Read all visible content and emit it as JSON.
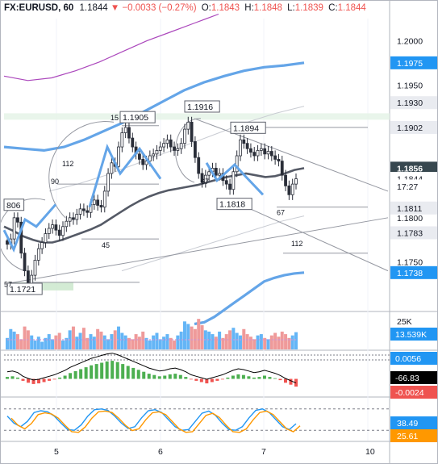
{
  "header": {
    "symbol": "FX:EURUSD, 60",
    "last": "1.1844",
    "change": "▼ −0.0033 (−0.27%)",
    "o_label": "O:",
    "o": "1.1843",
    "h_label": "H:",
    "h": "1.1848",
    "l_label": "L:",
    "l": "1.1839",
    "c_label": "C:",
    "c": "1.1844"
  },
  "price_axis_ticks": [
    "1.2000",
    "1.1950",
    "1.1800",
    "1.1750"
  ],
  "price_badges": [
    {
      "text": "1.1975",
      "style": "blue"
    },
    {
      "text": "1.1930",
      "style": "gray"
    },
    {
      "text": "1.1902",
      "style": "gray"
    },
    {
      "text": "1.1856",
      "style": "dark"
    },
    {
      "text": "1.1844",
      "style": "light"
    },
    {
      "text": "17:27",
      "style": "light"
    },
    {
      "text": "1.1811",
      "style": "gray"
    },
    {
      "text": "1.1783",
      "style": "gray"
    },
    {
      "text": "1.1738",
      "style": "blue"
    }
  ],
  "chart_labels": [
    {
      "text": "1.1905",
      "boxed": true
    },
    {
      "text": "1.1916",
      "boxed": true
    },
    {
      "text": "1.1894",
      "boxed": true
    },
    {
      "text": "1.1818",
      "boxed": true
    },
    {
      "text": "1.1721",
      "boxed": true
    },
    {
      "text": "806",
      "boxed": true
    },
    {
      "text": "15",
      "boxed": false
    },
    {
      "text": "112",
      "boxed": false
    },
    {
      "text": "90",
      "boxed": false
    },
    {
      "text": "45",
      "boxed": false
    },
    {
      "text": "67",
      "boxed": false
    },
    {
      "text": "67",
      "boxed": false
    },
    {
      "text": "112",
      "boxed": false
    },
    {
      "text": "57",
      "boxed": false
    }
  ],
  "volume_badges": [
    {
      "text": "25K",
      "style": "tick"
    },
    {
      "text": "13.539K",
      "style": "blue"
    }
  ],
  "macd_badges": [
    {
      "text": "0.0056",
      "style": "blue"
    },
    {
      "text": "-66.83",
      "style": "black"
    },
    {
      "text": "-0.0024",
      "style": "red"
    }
  ],
  "stoch_badges": [
    {
      "text": "38.49",
      "style": "blue"
    },
    {
      "text": "25.61",
      "style": "orange"
    }
  ],
  "time_axis": [
    "5",
    "6",
    "7",
    "10"
  ],
  "colors": {
    "up": "#4caf50",
    "down": "#ef5350",
    "badge_blue": "#2196f3",
    "badge_gray": "#e9ebf0",
    "badge_dark": "#37474f",
    "orange": "#ff9800",
    "purple": "#ab47bc"
  },
  "chart_data": {
    "type": "candlestick",
    "title": "FX:EURUSD, 60",
    "ylim": [
      1.1695,
      1.2025
    ],
    "x_ticks": [
      "5",
      "6",
      "7",
      "10"
    ],
    "series": [
      {
        "name": "EURUSD",
        "values": [
          1.177,
          1.1776,
          1.18,
          1.1795,
          1.176,
          1.174,
          1.1726,
          1.1735,
          1.1752,
          1.1765,
          1.1772,
          1.1782,
          1.1788,
          1.1792,
          1.1786,
          1.178,
          1.179,
          1.1796,
          1.18,
          1.1798,
          1.1804,
          1.181,
          1.1808,
          1.1806,
          1.1815,
          1.182,
          1.1814,
          1.1812,
          1.183,
          1.185,
          1.1862,
          1.1858,
          1.188,
          1.1896,
          1.1902,
          1.189,
          1.188,
          1.1872,
          1.1866,
          1.186,
          1.1864,
          1.187,
          1.1872,
          1.1876,
          1.188,
          1.1884,
          1.1888,
          1.188,
          1.1876,
          1.1878,
          1.1884,
          1.19,
          1.1908,
          1.1886,
          1.1868,
          1.185,
          1.184,
          1.1848,
          1.1852,
          1.1856,
          1.1848,
          1.185,
          1.1842,
          1.1838,
          1.1832,
          1.1852,
          1.187,
          1.1888,
          1.1884,
          1.1878,
          1.1874,
          1.187,
          1.1876,
          1.1878,
          1.1872,
          1.1875,
          1.187,
          1.1866,
          1.1864,
          1.1848,
          1.1836,
          1.1826,
          1.1838,
          1.1844
        ]
      },
      {
        "name": "Moving Average",
        "values": [
          1.179,
          1.1785,
          1.1779,
          1.1775,
          1.1772,
          1.1772,
          1.1775,
          1.1779,
          1.1783,
          1.1787,
          1.1792,
          1.1799,
          1.1806,
          1.1813,
          1.1819,
          1.1824,
          1.1828,
          1.1831,
          1.1833,
          1.1835,
          1.1837,
          1.184,
          1.1843,
          1.1846,
          1.1848,
          1.185,
          1.1848,
          1.1846,
          1.1847,
          1.185,
          1.1854,
          1.1856
        ]
      },
      {
        "name": "Upper band",
        "values": [
          1.188,
          1.1878,
          1.1876,
          1.188,
          1.1888,
          1.1898,
          1.1908,
          1.192,
          1.1932,
          1.1944,
          1.1953,
          1.196,
          1.1966,
          1.197,
          1.1972,
          1.1975
        ]
      },
      {
        "name": "Lower band",
        "values": [
          1.168,
          1.1682,
          1.1688,
          1.1696,
          1.1704,
          1.1712,
          1.172,
          1.1728,
          1.1732,
          1.1735,
          1.1737,
          1.1738
        ]
      }
    ],
    "volume": [
      9,
      16,
      14,
      12,
      8,
      18,
      15,
      11,
      7,
      10,
      6,
      9,
      12,
      8,
      11,
      13,
      7,
      9,
      15,
      18,
      10,
      13,
      17,
      9,
      12,
      10,
      16,
      14,
      11,
      8,
      12,
      15,
      18,
      13,
      11,
      9,
      8,
      12,
      10,
      14,
      9,
      7,
      11,
      13,
      8,
      10,
      12,
      9,
      7,
      11,
      14,
      22,
      20,
      18,
      16,
      24,
      19,
      15,
      14,
      12,
      10,
      14,
      9,
      12,
      15,
      17,
      13,
      11,
      16,
      12,
      10,
      8,
      11,
      12,
      9,
      8,
      11,
      13,
      10,
      14,
      12,
      9,
      11,
      13.539
    ],
    "macd_hist": [
      0.0006,
      0.0008,
      0.0004,
      -0.0006,
      -0.0012,
      -0.0016,
      -0.0014,
      -0.001,
      -0.0006,
      -0.0002,
      0.0004,
      0.001,
      0.0018,
      0.0024,
      0.003,
      0.0036,
      0.0042,
      0.0046,
      0.005,
      0.0054,
      0.0056,
      0.0052,
      0.0046,
      0.004,
      0.0034,
      0.0028,
      0.0022,
      0.0016,
      0.0012,
      0.0008,
      0.001,
      0.0014,
      0.0016,
      0.0012,
      0.0006,
      -0.0002,
      -0.0006,
      -0.001,
      -0.0014,
      -0.001,
      -0.0006,
      -0.0002,
      0.0004,
      0.001,
      0.0014,
      0.0012,
      0.0008,
      0.0004,
      0.0006,
      0.001,
      0.0006,
      0.0002,
      -0.0004,
      -0.0012,
      -0.0018,
      -0.0024
    ],
    "stochastic": [
      60,
      40,
      30,
      45,
      70,
      75,
      72,
      60,
      40,
      22,
      20,
      35,
      60,
      78,
      80,
      76,
      60,
      40,
      25,
      30,
      55,
      75,
      78,
      70,
      50,
      30,
      20,
      22,
      45,
      68,
      74,
      62,
      40,
      22,
      20,
      30,
      55,
      76,
      80,
      70,
      50,
      30,
      22,
      38.49
    ]
  }
}
